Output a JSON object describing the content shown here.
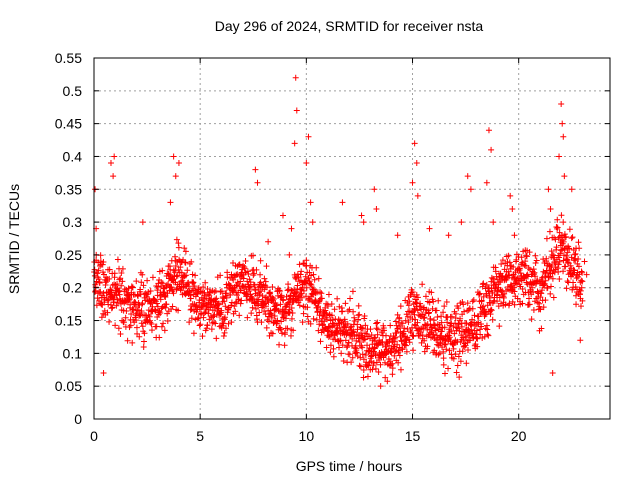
{
  "colors": {
    "series": "#ff0000",
    "grid": "#a0a0a0",
    "axis": "#000000"
  },
  "chart_data": {
    "type": "scatter",
    "title": "Day 296 of 2024, SRMTID for receiver nsta",
    "xlabel": "GPS time / hours",
    "ylabel": "SRMTID / TECUs",
    "xlim": [
      0,
      24.3
    ],
    "ylim": [
      0,
      0.55
    ],
    "xticks": [
      0,
      5,
      10,
      15,
      20
    ],
    "xtick_labels": [
      "0",
      "5",
      "10",
      "15",
      "20"
    ],
    "yticks": [
      0,
      0.05,
      0.1,
      0.15,
      0.2,
      0.25,
      0.3,
      0.35,
      0.4,
      0.45,
      0.5,
      0.55
    ],
    "ytick_labels": [
      "0",
      "0.05",
      "0.1",
      "0.15",
      "0.2",
      "0.25",
      "0.3",
      "0.35",
      "0.4",
      "0.45",
      "0.5",
      "0.55"
    ],
    "grid": true,
    "marker": "+",
    "series": [
      {
        "name": "SRMTID",
        "color": "#ff0000",
        "trend": [
          [
            0,
            0.21
          ],
          [
            1,
            0.19
          ],
          [
            2,
            0.17
          ],
          [
            3,
            0.17
          ],
          [
            4,
            0.23
          ],
          [
            5,
            0.17
          ],
          [
            6,
            0.17
          ],
          [
            7,
            0.21
          ],
          [
            8,
            0.18
          ],
          [
            9,
            0.16
          ],
          [
            10,
            0.21
          ],
          [
            11,
            0.14
          ],
          [
            12,
            0.13
          ],
          [
            13,
            0.11
          ],
          [
            14,
            0.1
          ],
          [
            15,
            0.16
          ],
          [
            16,
            0.14
          ],
          [
            17,
            0.12
          ],
          [
            18,
            0.14
          ],
          [
            19,
            0.2
          ],
          [
            20,
            0.22
          ],
          [
            21,
            0.19
          ],
          [
            22,
            0.27
          ],
          [
            23,
            0.2
          ]
        ],
        "spread": 0.045,
        "points": [
          [
            0.05,
            0.35
          ],
          [
            0.1,
            0.29
          ],
          [
            0.45,
            0.07
          ],
          [
            0.8,
            0.39
          ],
          [
            0.9,
            0.37
          ],
          [
            0.95,
            0.4
          ],
          [
            2.3,
            0.3
          ],
          [
            3.6,
            0.33
          ],
          [
            3.75,
            0.4
          ],
          [
            3.85,
            0.37
          ],
          [
            4.0,
            0.39
          ],
          [
            7.6,
            0.38
          ],
          [
            7.7,
            0.36
          ],
          [
            8.2,
            0.27
          ],
          [
            8.9,
            0.31
          ],
          [
            9.2,
            0.25
          ],
          [
            9.3,
            0.29
          ],
          [
            9.45,
            0.42
          ],
          [
            9.5,
            0.52
          ],
          [
            9.55,
            0.47
          ],
          [
            10.0,
            0.39
          ],
          [
            10.1,
            0.43
          ],
          [
            10.2,
            0.33
          ],
          [
            10.3,
            0.3
          ],
          [
            11.7,
            0.33
          ],
          [
            12.6,
            0.31
          ],
          [
            12.7,
            0.3
          ],
          [
            13.2,
            0.35
          ],
          [
            13.3,
            0.32
          ],
          [
            13.5,
            0.05
          ],
          [
            14.3,
            0.28
          ],
          [
            15.0,
            0.36
          ],
          [
            15.1,
            0.42
          ],
          [
            15.2,
            0.39
          ],
          [
            15.25,
            0.34
          ],
          [
            15.8,
            0.29
          ],
          [
            16.7,
            0.28
          ],
          [
            17.3,
            0.3
          ],
          [
            17.6,
            0.37
          ],
          [
            17.75,
            0.35
          ],
          [
            18.5,
            0.36
          ],
          [
            18.6,
            0.44
          ],
          [
            18.7,
            0.41
          ],
          [
            18.8,
            0.3
          ],
          [
            19.6,
            0.34
          ],
          [
            19.7,
            0.32
          ],
          [
            19.8,
            0.28
          ],
          [
            21.4,
            0.35
          ],
          [
            21.5,
            0.32
          ],
          [
            21.6,
            0.07
          ],
          [
            21.9,
            0.4
          ],
          [
            22.0,
            0.48
          ],
          [
            22.05,
            0.45
          ],
          [
            22.1,
            0.43
          ],
          [
            22.15,
            0.37
          ],
          [
            22.3,
            0.21
          ],
          [
            22.5,
            0.35
          ],
          [
            22.7,
            0.26
          ],
          [
            22.9,
            0.12
          ],
          [
            23.0,
            0.18
          ],
          [
            23.1,
            0.24
          ],
          [
            23.2,
            0.22
          ]
        ]
      }
    ]
  }
}
